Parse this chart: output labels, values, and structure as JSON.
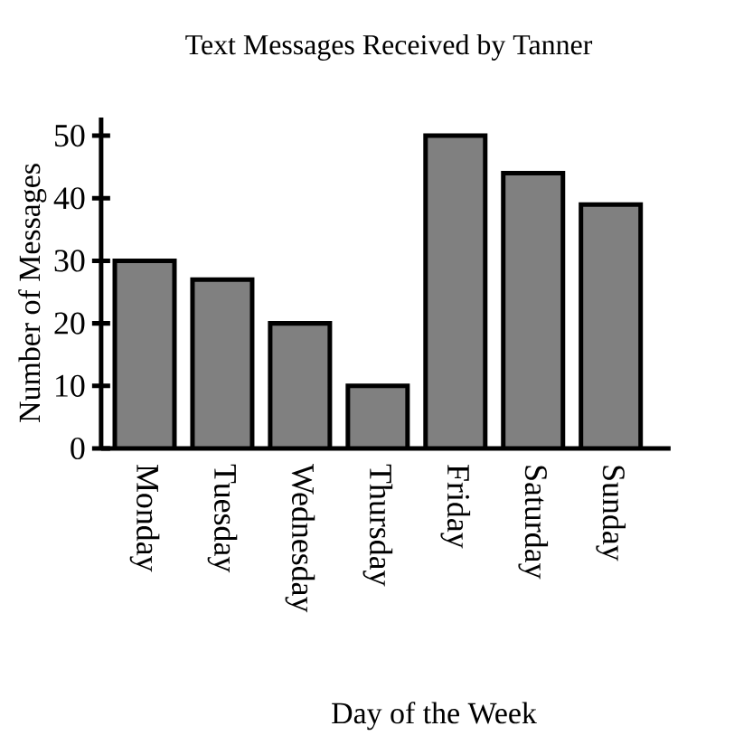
{
  "chart_data": {
    "type": "bar",
    "title": "Text Messages Received by Tanner",
    "xlabel": "Day of the Week",
    "ylabel": "Number of Messages",
    "categories": [
      "Monday",
      "Tuesday",
      "Wednesday",
      "Thursday",
      "Friday",
      "Saturday",
      "Sunday"
    ],
    "values": [
      30,
      27,
      20,
      10,
      50,
      44,
      39
    ],
    "color": "#808080",
    "ylim": [
      0,
      52.9
    ],
    "yticks": [
      0,
      10,
      20,
      30,
      40,
      50
    ],
    "grid": false
  }
}
